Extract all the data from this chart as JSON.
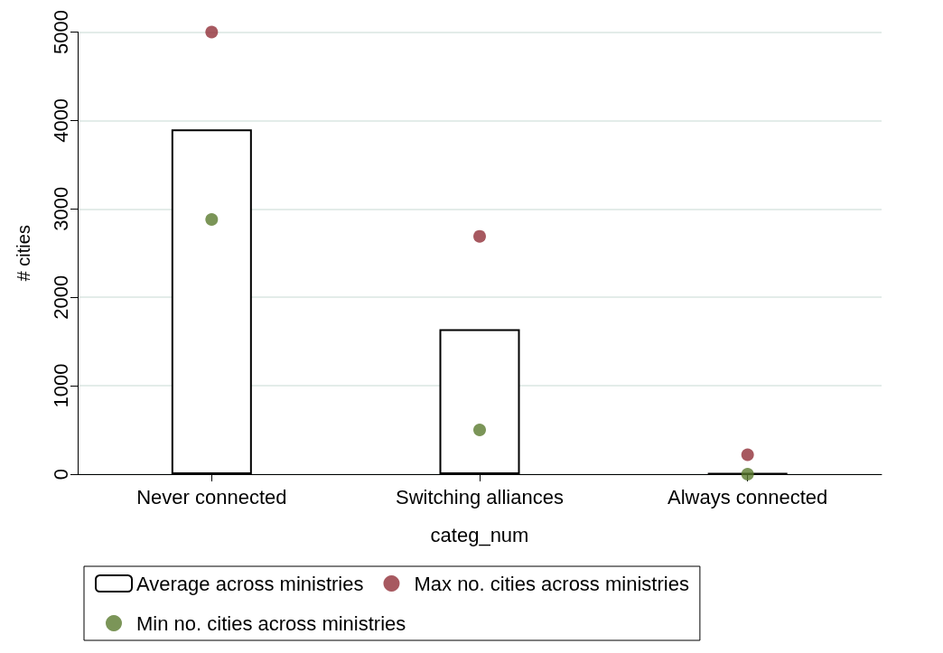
{
  "chart_data": {
    "type": "bar",
    "categories": [
      "Never connected",
      "Switching alliances",
      "Always connected"
    ],
    "xlabel": "categ_num",
    "ylabel": "# cities",
    "ylim": [
      0,
      5000
    ],
    "yticks": [
      0,
      {
        "value": 1000,
        "label": "1000"
      },
      {
        "value": 2000,
        "label": "2000"
      },
      {
        "value": 3000,
        "label": "3000"
      },
      {
        "value": 4000,
        "label": "4000"
      },
      {
        "value": 5000,
        "label": "5000"
      }
    ],
    "grid": "y",
    "legend": "bottom",
    "series": [
      {
        "name": "Average across ministries",
        "color": "#ffffff",
        "colors": [
          "#ffffff",
          "#ffffff",
          "#000000"
        ],
        "values": [
          3900,
          1640,
          10
        ]
      },
      {
        "name": "Max no. cities across ministries",
        "type": "scatter",
        "color": "#913038",
        "marker": "circle",
        "values": [
          5000,
          2690,
          220
        ]
      },
      {
        "name": "Min no. cities across ministries",
        "type": "scatter",
        "color": "#5a7a2e",
        "marker": "circle",
        "values": [
          2880,
          500,
          0
        ]
      }
    ]
  }
}
